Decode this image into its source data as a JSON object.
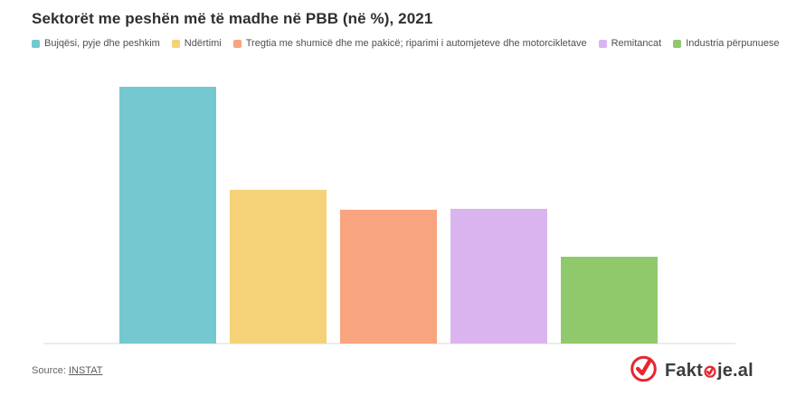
{
  "header": {
    "title": "Sektorët me peshën më të madhe në PBB (në %), 2021"
  },
  "legend": {
    "items": [
      {
        "label": "Bujqësi, pyje dhe peshkim",
        "color": "#74c9d0"
      },
      {
        "label": "Ndërtimi",
        "color": "#f5d278"
      },
      {
        "label": "Tregtia me shumicë dhe me pakicë; riparimi i automjeteve dhe motorcikletave",
        "color": "#f8a47f"
      },
      {
        "label": "Remitancat",
        "color": "#d9b4ee"
      },
      {
        "label": "Industria përpunuese",
        "color": "#90c96b"
      }
    ]
  },
  "chart_data": {
    "type": "bar",
    "title": "Sektorët me peshën më të madhe në PBB (në %), 2021",
    "categories": [
      "Bujqësi, pyje dhe peshkim",
      "Ndërtimi",
      "Tregtia me shumicë dhe me pakicë; riparimi i automjeteve dhe motorcikletave",
      "Remitancat",
      "Industria përpunuese"
    ],
    "values": [
      17.7,
      10.6,
      9.2,
      9.3,
      6.0
    ],
    "colors": [
      "#74c9d0",
      "#f5d278",
      "#f8a47f",
      "#d9b4ee",
      "#90c96b"
    ],
    "xlabel": "",
    "ylabel": "",
    "ylim": [
      0,
      17.7
    ],
    "grid": false,
    "axis_tick_labels": "none",
    "legend_position": "top"
  },
  "footer": {
    "source_prefix": "Source:",
    "source_link": "INSTAT"
  },
  "branding": {
    "full_name": "Faktoje.al",
    "text_before": "Fakt",
    "text_after": "je.al",
    "accent_color": "#e8262d"
  }
}
